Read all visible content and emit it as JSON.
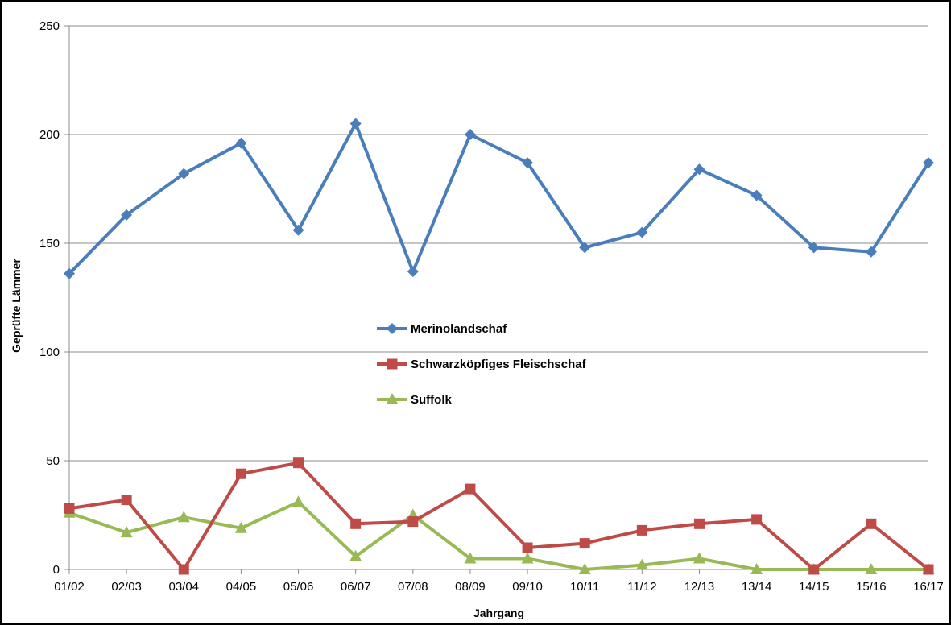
{
  "chart_data": {
    "type": "line",
    "xlabel": "Jahrgang",
    "ylabel": "Geprüfte Lämmer",
    "ylim": [
      0,
      250
    ],
    "yticks": [
      0,
      50,
      100,
      150,
      200,
      250
    ],
    "grid": "horizontal",
    "legend_position": "center",
    "categories": [
      "01/02",
      "02/03",
      "03/04",
      "04/05",
      "05/06",
      "06/07",
      "07/08",
      "08/09",
      "09/10",
      "10/11",
      "11/12",
      "12/13",
      "13/14",
      "14/15",
      "15/16",
      "16/17"
    ],
    "series": [
      {
        "name": "Merinolandschaf",
        "color": "#4a7ebb",
        "marker": "diamond",
        "values": [
          136,
          163,
          182,
          196,
          156,
          205,
          137,
          200,
          187,
          148,
          155,
          184,
          172,
          148,
          146,
          187
        ]
      },
      {
        "name": "Schwarzköpfiges Fleischschaf",
        "color": "#be4b48",
        "marker": "square",
        "values": [
          28,
          32,
          0,
          44,
          49,
          21,
          22,
          37,
          10,
          12,
          18,
          21,
          23,
          0,
          21,
          0
        ]
      },
      {
        "name": "Suffolk",
        "color": "#98b954",
        "marker": "triangle",
        "values": [
          26,
          17,
          24,
          19,
          31,
          6,
          25,
          5,
          5,
          0,
          2,
          5,
          0,
          0,
          0,
          0
        ]
      }
    ]
  }
}
